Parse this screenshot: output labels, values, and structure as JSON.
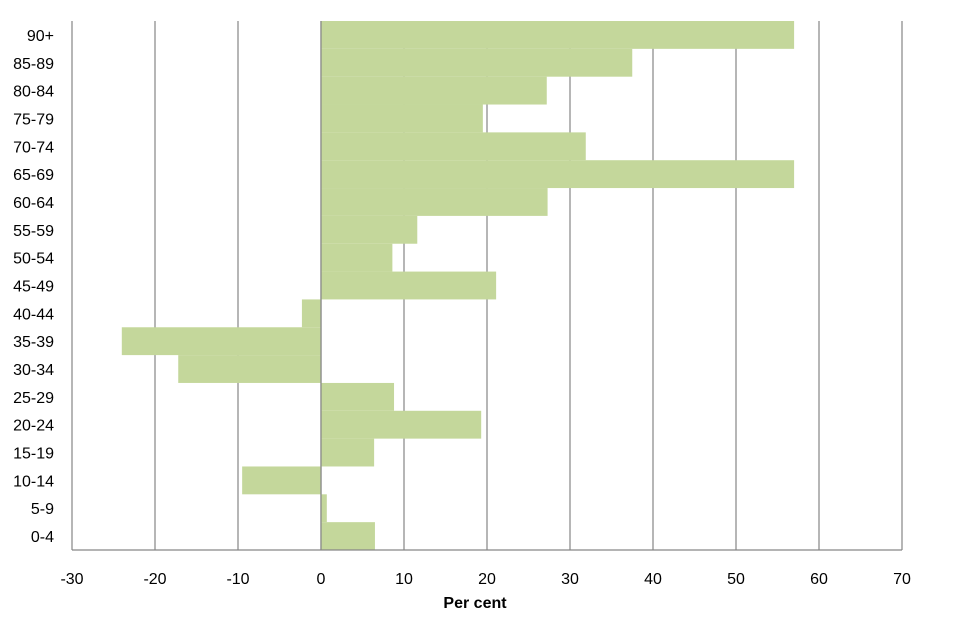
{
  "chart_data": {
    "type": "bar",
    "orientation": "horizontal",
    "categories": [
      "0-4",
      "5-9",
      "10-14",
      "15-19",
      "20-24",
      "25-29",
      "30-34",
      "35-39",
      "40-44",
      "45-49",
      "50-54",
      "55-59",
      "60-64",
      "65-69",
      "70-74",
      "75-79",
      "80-84",
      "85-89",
      "90+"
    ],
    "values": [
      6.5,
      0.7,
      -9.5,
      6.4,
      19.3,
      8.8,
      -17.2,
      -24.0,
      -2.3,
      21.1,
      8.6,
      11.6,
      27.3,
      57.0,
      31.9,
      19.5,
      27.2,
      37.5,
      57.0
    ],
    "title": "",
    "xlabel": "Per cent",
    "ylabel": "",
    "xlim": [
      -30,
      70
    ],
    "xticks": [
      -30,
      -20,
      -10,
      0,
      10,
      20,
      30,
      40,
      50,
      60,
      70
    ],
    "grid": "vertical",
    "legend": "none",
    "bar_color": "#c4d79b",
    "grid_color": "#868686"
  }
}
